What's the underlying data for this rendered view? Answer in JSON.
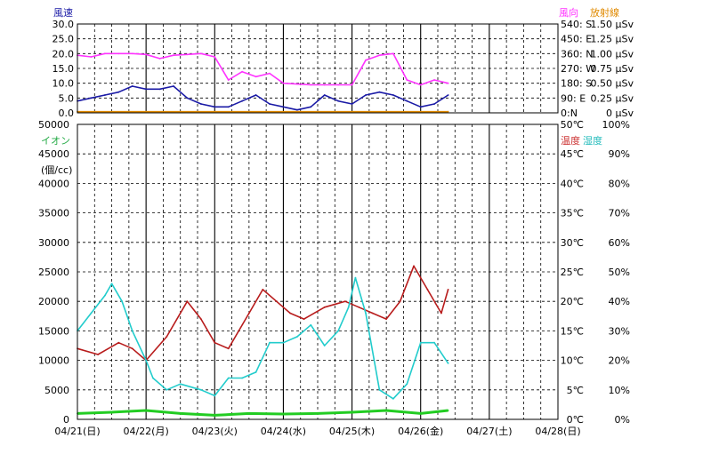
{
  "colors": {
    "wind_speed": "#1a1aa6",
    "wind_dir": "#ff33ff",
    "radiation": "#e08a00",
    "ion": "#22cc22",
    "temperature": "#b81c1c",
    "humidity": "#22cccc",
    "label_blue": "#1a1aa6",
    "label_red": "#cc3333",
    "label_green": "#22aa44",
    "label_cyan": "#22bbbb",
    "label_magenta": "#ff33ff",
    "label_orange": "#e08a00"
  },
  "top_panel": {
    "left_title": "風速",
    "right_title_dir": "風向",
    "right_title_rad": "放射線",
    "left_ticks": [
      "30.0",
      "25.0",
      "20.0",
      "15.0",
      "10.0",
      "5.0",
      "0.0"
    ],
    "dir_ticks": [
      "540: S",
      "450: E",
      "360: N",
      "270: W",
      "180: S",
      "90: E",
      "0:N"
    ],
    "rad_ticks": [
      "1.50 μSv",
      "1.25 μSv",
      "1.00 μSv",
      "0.75 μSv",
      "0.50 μSv",
      "0.25 μSv",
      "0 μSv"
    ]
  },
  "bottom_panel": {
    "left_title": "イオン",
    "left_unit": "(個/cc)",
    "right_title_temp": "温度",
    "right_title_hum": "湿度",
    "left_ticks": [
      "50000",
      "45000",
      "40000",
      "35000",
      "30000",
      "25000",
      "20000",
      "15000",
      "10000",
      "5000",
      "0"
    ],
    "temp_ticks": [
      "50℃",
      "45℃",
      "40℃",
      "35℃",
      "30℃",
      "25℃",
      "20℃",
      "15℃",
      "10℃",
      "5℃",
      "0℃"
    ],
    "hum_ticks": [
      "100%",
      "90%",
      "80%",
      "70%",
      "60%",
      "50%",
      "40%",
      "30%",
      "20%",
      "10%",
      "0%"
    ]
  },
  "x_labels": [
    "04/21(日)",
    "04/22(月)",
    "04/23(火)",
    "04/24(水)",
    "04/25(木)",
    "04/26(金)",
    "04/27(土)",
    "04/28(日)"
  ],
  "chart_data": [
    {
      "type": "line",
      "x_unit": "day",
      "x_labels": [
        "04/21(日)",
        "04/22(月)",
        "04/23(火)",
        "04/24(水)",
        "04/25(木)",
        "04/26(金)",
        "04/27(土)",
        "04/28(日)"
      ],
      "xlim": [
        0,
        7
      ],
      "grid": true,
      "series": [
        {
          "name": "風速",
          "axis": "left",
          "ylim": [
            0,
            30
          ],
          "x": [
            0,
            0.2,
            0.4,
            0.6,
            0.8,
            1.0,
            1.2,
            1.4,
            1.6,
            1.8,
            2.0,
            2.2,
            2.4,
            2.6,
            2.8,
            3.0,
            3.2,
            3.4,
            3.6,
            3.8,
            4.0,
            4.2,
            4.4,
            4.6,
            4.8,
            5.0,
            5.2,
            5.4
          ],
          "values": [
            4,
            5,
            6,
            7,
            9,
            8,
            8,
            9,
            5,
            3,
            2,
            2,
            4,
            6,
            3,
            2,
            1,
            2,
            6,
            4,
            3,
            6,
            7,
            6,
            4,
            2,
            3,
            6
          ]
        },
        {
          "name": "風向",
          "axis": "right",
          "ylim": [
            0,
            540
          ],
          "x": [
            0,
            0.2,
            0.4,
            0.6,
            0.8,
            1.0,
            1.2,
            1.4,
            1.6,
            1.8,
            2.0,
            2.2,
            2.4,
            2.6,
            2.8,
            3.0,
            3.2,
            3.4,
            3.6,
            3.8,
            4.0,
            4.2,
            4.4,
            4.6,
            4.8,
            5.0,
            5.2,
            5.4
          ],
          "values": [
            350,
            340,
            360,
            360,
            360,
            355,
            330,
            350,
            355,
            360,
            340,
            200,
            250,
            220,
            240,
            180,
            175,
            170,
            170,
            170,
            170,
            320,
            350,
            360,
            200,
            170,
            200,
            180
          ]
        },
        {
          "name": "放射線",
          "axis": "right",
          "ylim": [
            0,
            1.5
          ],
          "x": [
            0,
            5.4
          ],
          "values": [
            0.02,
            0.02
          ]
        }
      ]
    },
    {
      "type": "line",
      "x_unit": "day",
      "x_labels": [
        "04/21(日)",
        "04/22(月)",
        "04/23(火)",
        "04/24(水)",
        "04/25(木)",
        "04/26(金)",
        "04/27(土)",
        "04/28(日)"
      ],
      "xlim": [
        0,
        7
      ],
      "grid": true,
      "series": [
        {
          "name": "イオン",
          "axis": "left",
          "ylim": [
            0,
            50000
          ],
          "x": [
            0,
            0.5,
            1.0,
            1.5,
            2.0,
            2.5,
            3.0,
            3.5,
            4.0,
            4.5,
            5.0,
            5.4
          ],
          "values": [
            1000,
            1200,
            1500,
            1000,
            700,
            1000,
            900,
            1000,
            1200,
            1500,
            1000,
            1500
          ]
        },
        {
          "name": "温度",
          "axis": "right",
          "ylim": [
            0,
            50
          ],
          "x": [
            0,
            0.3,
            0.6,
            0.8,
            1.0,
            1.3,
            1.6,
            1.8,
            2.0,
            2.2,
            2.5,
            2.7,
            2.9,
            3.1,
            3.3,
            3.6,
            3.9,
            4.1,
            4.3,
            4.5,
            4.7,
            4.9,
            5.1,
            5.3,
            5.4
          ],
          "values": [
            12,
            11,
            13,
            12,
            10,
            14,
            20,
            17,
            13,
            12,
            18,
            22,
            20,
            18,
            17,
            19,
            20,
            19,
            18,
            17,
            20,
            26,
            22,
            18,
            22
          ]
        },
        {
          "name": "湿度",
          "axis": "right",
          "ylim": [
            0,
            100
          ],
          "x": [
            0,
            0.2,
            0.4,
            0.5,
            0.65,
            0.8,
            1.0,
            1.1,
            1.3,
            1.5,
            1.8,
            2.0,
            2.2,
            2.4,
            2.6,
            2.8,
            3.0,
            3.2,
            3.4,
            3.6,
            3.8,
            3.95,
            4.05,
            4.2,
            4.4,
            4.6,
            4.8,
            5.0,
            5.2,
            5.4
          ],
          "values": [
            30,
            36,
            42,
            46,
            40,
            30,
            20,
            14,
            10,
            12,
            10,
            8,
            14,
            14,
            16,
            26,
            26,
            28,
            32,
            25,
            30,
            38,
            48,
            36,
            10,
            7,
            12,
            26,
            26,
            19
          ]
        }
      ]
    }
  ]
}
